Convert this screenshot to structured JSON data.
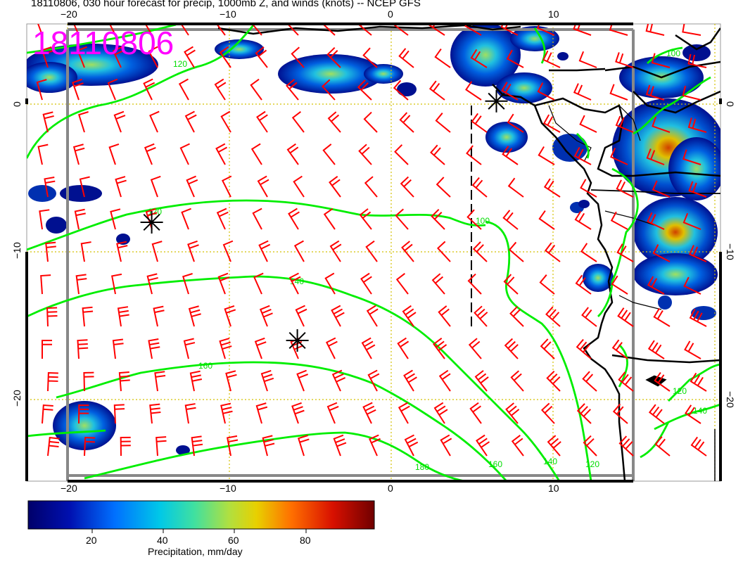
{
  "title": "18110806, 030 hour forecast for precip, 1000mb Z, and winds (knots) -- NCEP GFS",
  "stamp": "18110806",
  "axes": {
    "top_ticks": [
      "−20",
      "−10",
      "0",
      "10"
    ],
    "bottom_ticks": [
      "−20",
      "−10",
      "0",
      "10"
    ],
    "left_ticks": [
      "0",
      "−10",
      "−20"
    ],
    "right_ticks": [
      "0",
      "−10",
      "−20"
    ]
  },
  "contours": {
    "color": "#00ee00",
    "labels": [
      "120",
      "120",
      "140",
      "160",
      "180",
      "160",
      "140",
      "120",
      "100",
      "120",
      "140",
      "100"
    ]
  },
  "markers": [
    {
      "name": "star-marker-west",
      "lon": -14.8,
      "lat": -8.0
    },
    {
      "name": "star-marker-central",
      "lon": -5.8,
      "lat": -16.0
    },
    {
      "name": "star-marker-coast",
      "lon": 6.5,
      "lat": 0.2
    }
  ],
  "colorbar": {
    "label": "Precipitation, mm/day",
    "ticks": [
      "20",
      "40",
      "60",
      "80"
    ],
    "colors": [
      "#000080",
      "#0030c0",
      "#0080ff",
      "#00c8e0",
      "#40e0b0",
      "#a0e060",
      "#e0d000",
      "#ff8000",
      "#e02000",
      "#800000"
    ]
  },
  "colors": {
    "wind_barbs": "#ff0000",
    "coastline": "#000000",
    "gridlines": "#d4c000",
    "stamp": "#ff00ff"
  }
}
